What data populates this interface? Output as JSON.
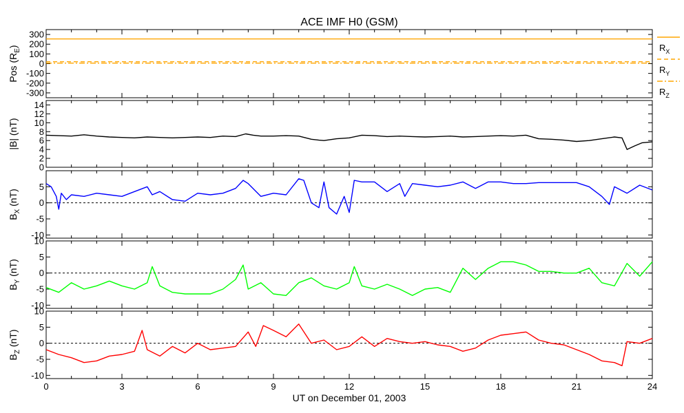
{
  "chart_data": {
    "type": "line",
    "title": "ACE IMF H0 (GSM)",
    "xlabel": "UT on December 01, 2003",
    "xlim": [
      0,
      24
    ],
    "x_ticks": [
      0,
      3,
      6,
      9,
      12,
      15,
      18,
      21,
      24
    ],
    "x_tick_labels": [
      "0",
      "3",
      "6",
      "9",
      "12",
      "15",
      "18",
      "21",
      "24"
    ],
    "grid": false,
    "panels": [
      {
        "id": "pos",
        "ylabel": "Pos (R",
        "ylabel_sub": "E",
        "ylabel_end": ")",
        "ylim": [
          -350,
          350
        ],
        "y_ticks": [
          300,
          200,
          100,
          0,
          -100,
          -200,
          -300
        ],
        "y_tick_labels": [
          "300",
          "200",
          "100",
          "0",
          "-100",
          "-200",
          "-300"
        ],
        "zero_line": false,
        "legend": [
          {
            "label": "R",
            "sub": "X",
            "color": "#FFA500",
            "dash": "solid"
          },
          {
            "label": "R",
            "sub": "Y",
            "color": "#FFA500",
            "dash": "dash"
          },
          {
            "label": "R",
            "sub": "Z",
            "color": "#FFA500",
            "dash": "dashdot"
          }
        ],
        "series": [
          {
            "name": "R_X",
            "color": "#FFA500",
            "dash": "solid",
            "x": [
              0,
              24
            ],
            "y": [
              254,
              254
            ]
          },
          {
            "name": "R_Y",
            "color": "#FFA500",
            "dash": "dash",
            "x": [
              0,
              24
            ],
            "y": [
              20,
              20
            ]
          },
          {
            "name": "R_Z",
            "color": "#FFA500",
            "dash": "dashdot",
            "x": [
              0,
              24
            ],
            "y": [
              6,
              6
            ]
          }
        ]
      },
      {
        "id": "bmag",
        "ylabel": "|B| (nT)",
        "ylim": [
          0,
          15
        ],
        "y_ticks": [
          14,
          12,
          10,
          8,
          6,
          4,
          2,
          0
        ],
        "y_tick_labels": [
          "14",
          "12",
          "10",
          "8",
          "6",
          "4",
          "2",
          "0"
        ],
        "zero_line": false,
        "series": [
          {
            "name": "|B|",
            "color": "#000000",
            "x": [
              0,
              0.5,
              1,
              1.5,
              2,
              2.5,
              3,
              3.5,
              4,
              4.5,
              5,
              5.5,
              6,
              6.5,
              7,
              7.5,
              7.9,
              8.2,
              8.5,
              9,
              9.5,
              10,
              10.5,
              10.8,
              11,
              11.5,
              12,
              12.5,
              13,
              13.5,
              14,
              14.5,
              15,
              15.5,
              16,
              16.5,
              17,
              17.5,
              18,
              18.5,
              19,
              19.5,
              20,
              20.5,
              21,
              21.5,
              22,
              22.5,
              22.8,
              23,
              23.3,
              23.6,
              24
            ],
            "y": [
              7.2,
              7.1,
              7.0,
              7.3,
              7.0,
              6.8,
              6.7,
              6.6,
              6.8,
              6.7,
              6.6,
              6.7,
              6.8,
              6.7,
              7.0,
              6.9,
              7.5,
              7.2,
              7.0,
              7.0,
              7.1,
              7.0,
              6.3,
              6.1,
              6.0,
              6.4,
              6.6,
              7.2,
              7.1,
              6.9,
              7.0,
              6.9,
              6.8,
              6.9,
              7.0,
              6.8,
              6.9,
              7.0,
              7.1,
              7.0,
              7.2,
              6.4,
              6.3,
              6.1,
              5.8,
              6.0,
              6.4,
              6.8,
              6.6,
              4.0,
              4.8,
              5.5,
              5.7
            ]
          }
        ]
      },
      {
        "id": "bx",
        "ylabel": "B",
        "ylabel_sub": "X",
        "ylabel_end": " (nT)",
        "ylim": [
          -11,
          10
        ],
        "y_ticks": [
          5,
          0,
          -5,
          -10
        ],
        "y_tick_labels": [
          "5",
          "0",
          "-5",
          "-10"
        ],
        "zero_line": true,
        "series": [
          {
            "name": "B_X",
            "color": "#0000FF",
            "x": [
              0,
              0.2,
              0.4,
              0.5,
              0.6,
              0.8,
              1,
              1.5,
              2,
              2.5,
              3,
              3.5,
              4,
              4.2,
              4.5,
              5,
              5.5,
              6,
              6.5,
              7,
              7.5,
              7.8,
              8,
              8.5,
              9,
              9.5,
              10,
              10.2,
              10.5,
              10.8,
              11,
              11.2,
              11.5,
              11.8,
              12,
              12.2,
              12.5,
              13,
              13.5,
              14,
              14.2,
              14.5,
              15,
              15.5,
              16,
              16.5,
              17,
              17.5,
              18,
              18.5,
              19,
              19.5,
              20,
              20.5,
              21,
              21.5,
              22,
              22.3,
              22.5,
              23,
              23.5,
              24
            ],
            "y": [
              6.0,
              5.0,
              2.0,
              -2.0,
              3.0,
              1.0,
              2.5,
              2.0,
              3.0,
              2.5,
              2.0,
              3.5,
              5.0,
              2.5,
              3.5,
              1.0,
              0.5,
              3.0,
              2.5,
              3.0,
              4.5,
              7.0,
              6.0,
              2.0,
              3.0,
              2.5,
              7.5,
              7.0,
              0.0,
              -1.5,
              6.5,
              -1.5,
              -3.5,
              2.0,
              -3.0,
              7.0,
              6.5,
              6.5,
              3.5,
              6.0,
              2.0,
              6.0,
              5.5,
              5.0,
              5.5,
              6.5,
              4.5,
              6.5,
              6.5,
              6.0,
              6.0,
              6.3,
              6.3,
              6.3,
              6.3,
              5.0,
              2.0,
              -0.5,
              5.0,
              3.0,
              5.5,
              4.0
            ]
          }
        ]
      },
      {
        "id": "by",
        "ylabel": "B",
        "ylabel_sub": "Y",
        "ylabel_end": " (nT)",
        "ylim": [
          -11,
          10
        ],
        "y_ticks": [
          10,
          5,
          0,
          -5,
          -10
        ],
        "y_tick_labels": [
          "10",
          "5",
          "0",
          "-5",
          "-10"
        ],
        "zero_line": true,
        "series": [
          {
            "name": "B_Y",
            "color": "#00FF00",
            "x": [
              0,
              0.5,
              1,
              1.5,
              2,
              2.5,
              3,
              3.5,
              4,
              4.2,
              4.5,
              5,
              5.5,
              6,
              6.5,
              7,
              7.5,
              7.8,
              8,
              8.5,
              9,
              9.5,
              10,
              10.5,
              11,
              11.5,
              12,
              12.2,
              12.5,
              13,
              13.5,
              14,
              14.5,
              15,
              15.5,
              16,
              16.5,
              17,
              17.5,
              18,
              18.5,
              19,
              19.5,
              20,
              20.5,
              21,
              21.5,
              22,
              22.5,
              23,
              23.5,
              24
            ],
            "y": [
              -4.5,
              -6.0,
              -3.0,
              -5.0,
              -4.0,
              -2.5,
              -4.0,
              -5.0,
              -3.0,
              2.0,
              -4.0,
              -6.0,
              -6.5,
              -6.5,
              -6.5,
              -5.0,
              -2.0,
              2.5,
              -5.0,
              -3.0,
              -6.5,
              -7.0,
              -3.0,
              -1.5,
              -4.0,
              -5.0,
              -3.0,
              2.0,
              -4.0,
              -5.0,
              -3.5,
              -5.0,
              -7.0,
              -5.0,
              -4.5,
              -6.0,
              1.5,
              -2.0,
              1.5,
              3.5,
              3.5,
              2.5,
              0.5,
              0.5,
              0.0,
              0.0,
              1.5,
              -3.0,
              -4.0,
              3.0,
              -1.0,
              3.5
            ]
          }
        ]
      },
      {
        "id": "bz",
        "ylabel": "B",
        "ylabel_sub": "Z",
        "ylabel_end": " (nT)",
        "ylim": [
          -11,
          10
        ],
        "y_ticks": [
          10,
          5,
          0,
          -5,
          -10
        ],
        "y_tick_labels": [
          "10",
          "5",
          "0",
          "-5",
          "-10"
        ],
        "zero_line": true,
        "series": [
          {
            "name": "B_Z",
            "color": "#FF0000",
            "x": [
              0,
              0.5,
              1,
              1.5,
              2,
              2.5,
              3,
              3.5,
              3.8,
              4,
              4.5,
              5,
              5.5,
              6,
              6.5,
              7,
              7.5,
              8,
              8.3,
              8.6,
              9,
              9.5,
              10,
              10.5,
              11,
              11.5,
              12,
              12.5,
              13,
              13.5,
              14,
              14.5,
              15,
              15.5,
              16,
              16.5,
              17,
              17.5,
              18,
              18.5,
              19,
              19.5,
              20,
              20.5,
              21,
              21.5,
              22,
              22.5,
              22.8,
              23,
              23.5,
              24
            ],
            "y": [
              -2.0,
              -3.5,
              -4.5,
              -6.0,
              -5.5,
              -4.0,
              -3.5,
              -2.5,
              4.0,
              -2.0,
              -4.0,
              -1.0,
              -3.0,
              0.0,
              -2.0,
              -1.5,
              -1.0,
              3.5,
              -1.0,
              5.5,
              4.0,
              2.0,
              6.0,
              0.0,
              1.0,
              -2.0,
              -1.0,
              2.0,
              -1.0,
              1.5,
              0.5,
              0.0,
              0.5,
              -0.5,
              -1.0,
              -2.5,
              -1.5,
              1.0,
              2.5,
              3.0,
              3.5,
              1.0,
              0.0,
              -0.5,
              -2.0,
              -3.5,
              -5.5,
              -6.0,
              -7.0,
              0.5,
              0.0,
              1.5
            ]
          }
        ]
      }
    ]
  }
}
